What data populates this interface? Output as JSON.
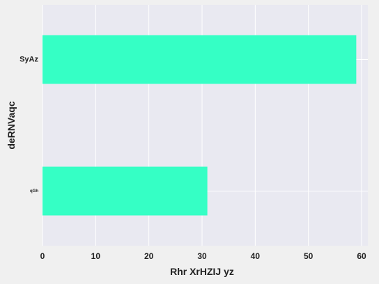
{
  "chart_data": {
    "type": "bar",
    "orientation": "horizontal",
    "categories": [
      "SyAz",
      "qGh"
    ],
    "category_label_sizes": [
      11,
      6
    ],
    "values": [
      59,
      31
    ],
    "xlabel": "Rhr XrHZIJ yz",
    "ylabel": "deRNVaqc",
    "xlim": [
      0,
      60
    ],
    "xticks": [
      0,
      10,
      20,
      30,
      40,
      50,
      60
    ],
    "grid": true,
    "legend": "none"
  },
  "colors": {
    "bar": "#35ffc5",
    "plot_bg": "#e9e9f1",
    "page_bg": "#f0f0f0",
    "grid": "#ffffff"
  }
}
